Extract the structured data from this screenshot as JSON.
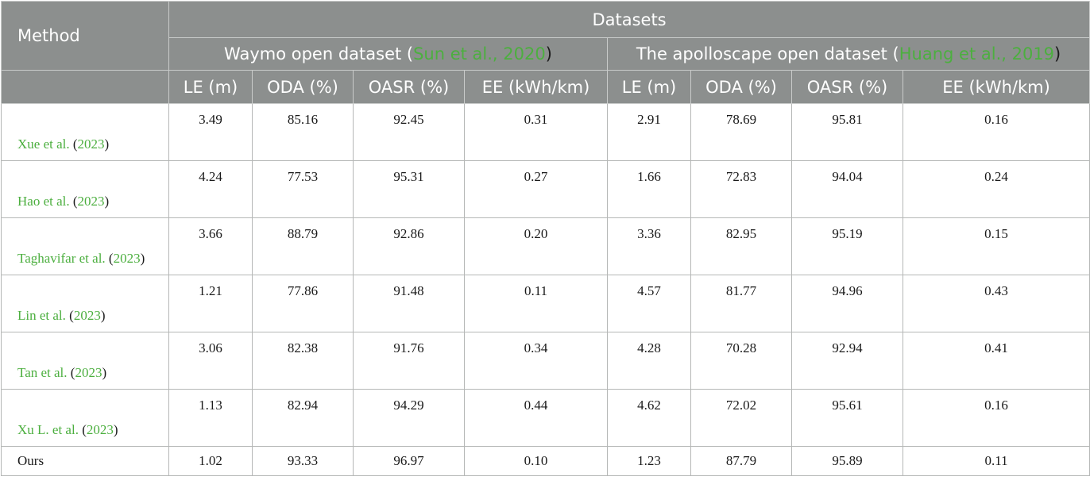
{
  "header": {
    "method": "Method",
    "datasets": "Datasets",
    "group1": {
      "prefix": "Waymo open dataset (",
      "cite": "Sun et al., 2020",
      "suffix": ")"
    },
    "group2": {
      "prefix": "The apolloscape open dataset (",
      "cite": "Huang et al., 2019",
      "suffix": ")"
    },
    "columns": [
      "LE (m)",
      "ODA (%)",
      "OASR (%)",
      "EE (kWh/km)",
      "LE (m)",
      "ODA (%)",
      "OASR (%)",
      "EE (kWh/km)"
    ]
  },
  "rows": [
    {
      "author": "Xue et al.",
      "open": " (",
      "year": "2023",
      "close": ")",
      "values": [
        "3.49",
        "85.16",
        "92.45",
        "0.31",
        "2.91",
        "78.69",
        "95.81",
        "0.16"
      ]
    },
    {
      "author": "Hao et al.",
      "open": " (",
      "year": "2023",
      "close": ")",
      "values": [
        "4.24",
        "77.53",
        "95.31",
        "0.27",
        "1.66",
        "72.83",
        "94.04",
        "0.24"
      ]
    },
    {
      "author": "Taghavifar et al.",
      "open": " (",
      "year": "2023",
      "close": ")",
      "values": [
        "3.66",
        "88.79",
        "92.86",
        "0.20",
        "3.36",
        "82.95",
        "95.19",
        "0.15"
      ]
    },
    {
      "author": "Lin et al.",
      "open": " (",
      "year": "2023",
      "close": ")",
      "values": [
        "1.21",
        "77.86",
        "91.48",
        "0.11",
        "4.57",
        "81.77",
        "94.96",
        "0.43"
      ]
    },
    {
      "author": "Tan et al.",
      "open": " (",
      "year": "2023",
      "close": ")",
      "values": [
        "3.06",
        "82.38",
        "91.76",
        "0.34",
        "4.28",
        "70.28",
        "92.94",
        "0.41"
      ]
    },
    {
      "author": "Xu L. et al.",
      "open": " (",
      "year": "2023",
      "close": ")",
      "values": [
        "1.13",
        "82.94",
        "94.29",
        "0.44",
        "4.62",
        "72.02",
        "95.61",
        "0.16"
      ]
    }
  ],
  "ours": {
    "label": "Ours",
    "values": [
      "1.02",
      "93.33",
      "96.97",
      "0.10",
      "1.23",
      "87.79",
      "95.89",
      "0.11"
    ]
  },
  "colors": {
    "header_bg": "#8c8f8e",
    "citation": "#4caf3f"
  }
}
